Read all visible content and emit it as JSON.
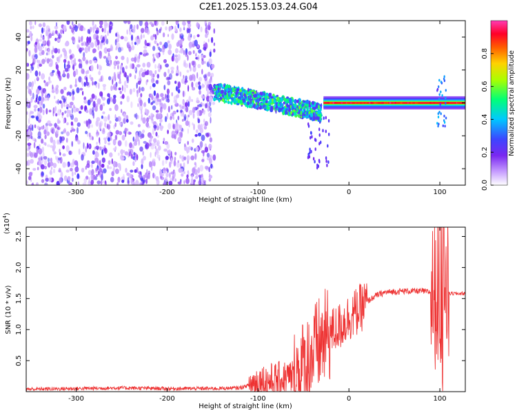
{
  "title": "C2E1.2025.153.03.24.G04",
  "chart_data": [
    {
      "type": "heatmap",
      "xlabel": "Height of straight line (km)",
      "ylabel": "Frequency (Hz)",
      "xlim": [
        -355,
        128
      ],
      "ylim": [
        -50,
        50
      ],
      "xticks": [
        "-300",
        "-200",
        "-100",
        "0",
        "100"
      ],
      "xtick_values": [
        -300,
        -200,
        -100,
        0,
        100
      ],
      "yticks": [
        "-40",
        "-20",
        "0",
        "20",
        "40"
      ],
      "ytick_values": [
        -40,
        -20,
        0,
        20,
        40
      ],
      "colorbar": {
        "label": "Normalized spectral amplitude",
        "ticks": [
          "0.0",
          "0.2",
          "0.4",
          "0.6",
          "0.8"
        ],
        "tick_values": [
          0.0,
          0.2,
          0.4,
          0.6,
          0.8
        ],
        "colors": [
          "#ffffff",
          "#7a28f0",
          "#3c46ff",
          "#00c8ff",
          "#00ff78",
          "#aaff00",
          "#ffd200",
          "#ff5a00",
          "#ff0028",
          "#ff3cb4"
        ]
      },
      "regions": [
        {
          "description": "broadband noise",
          "x": [
            -355,
            -148
          ],
          "freq": [
            -50,
            50
          ],
          "amplitude": 0.15
        },
        {
          "description": "scattered band",
          "x": [
            -148,
            -30
          ],
          "freq_center_start": 7,
          "freq_center_end": -6,
          "amplitude": 0.4
        },
        {
          "description": "stable carrier",
          "x": [
            -28,
            128
          ],
          "freq": 0,
          "amplitude": 0.85
        }
      ]
    },
    {
      "type": "line",
      "xlabel": "Height of straight line (km)",
      "ylabel": "SNR (10 * v/v)",
      "y_scale_label": "(x10",
      "y_scale_exponent": "4",
      "xlim": [
        -355,
        128
      ],
      "ylim": [
        0,
        2.65
      ],
      "xticks": [
        "-300",
        "-200",
        "-100",
        "0",
        "100"
      ],
      "xtick_values": [
        -300,
        -200,
        -100,
        0,
        100
      ],
      "yticks": [
        "0.5",
        "1.0",
        "1.5",
        "2.0",
        "2.5"
      ],
      "ytick_values": [
        0.5,
        1.0,
        1.5,
        2.0,
        2.5
      ],
      "color": "#ee3333",
      "series": [
        {
          "x": [
            -355,
            -300,
            -250,
            -200,
            -150,
            -120,
            -100,
            -80,
            -60,
            -50,
            -40,
            -30,
            -20,
            -10,
            0,
            10,
            20,
            30,
            40,
            60,
            80,
            90,
            95,
            100,
            103,
            105,
            108,
            110,
            128
          ],
          "y": [
            0.04,
            0.05,
            0.06,
            0.05,
            0.05,
            0.06,
            0.15,
            0.18,
            0.25,
            0.4,
            0.6,
            0.8,
            0.95,
            1.05,
            1.2,
            1.3,
            1.45,
            1.55,
            1.6,
            1.62,
            1.62,
            1.6,
            1.55,
            1.6,
            1.0,
            1.7,
            1.58,
            1.58,
            1.58
          ],
          "noise_envelope": [
            {
              "x": [
                -355,
                -110
              ],
              "amplitude": 0.03
            },
            {
              "x": [
                -110,
                -60
              ],
              "amplitude": 0.3
            },
            {
              "x": [
                -60,
                -20
              ],
              "amplitude": 0.8
            },
            {
              "x": [
                -20,
                20
              ],
              "amplitude": 0.4
            },
            {
              "x": [
                20,
                90
              ],
              "amplitude": 0.05
            },
            {
              "x": [
                90,
                110
              ],
              "amplitude": 1.2
            },
            {
              "x": [
                110,
                128
              ],
              "amplitude": 0.03
            }
          ]
        }
      ]
    }
  ]
}
